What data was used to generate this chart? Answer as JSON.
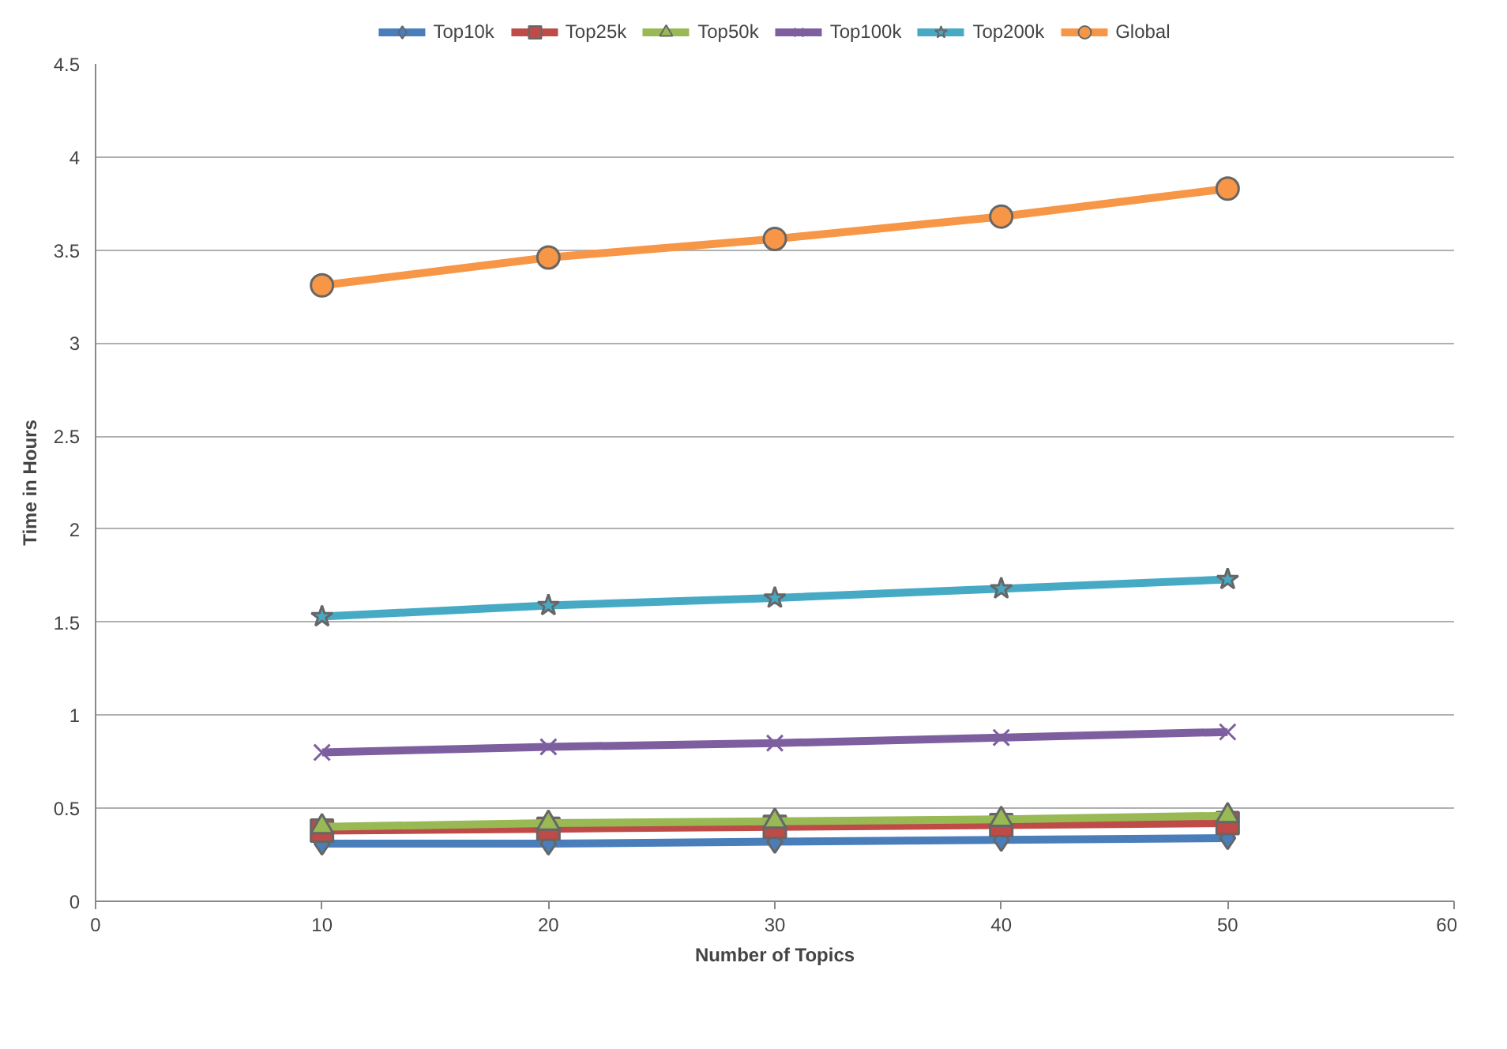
{
  "chart_data": {
    "type": "line",
    "xlabel": "Number of Topics",
    "ylabel": "Time in Hours",
    "x": [
      10,
      20,
      30,
      40,
      50
    ],
    "series": [
      {
        "name": "Top10k",
        "color": "#4a7ebb",
        "marker": "diamond",
        "values": [
          0.31,
          0.31,
          0.32,
          0.33,
          0.34
        ]
      },
      {
        "name": "Top25k",
        "color": "#be4b48",
        "marker": "square",
        "values": [
          0.38,
          0.39,
          0.4,
          0.41,
          0.42
        ]
      },
      {
        "name": "Top50k",
        "color": "#98b954",
        "marker": "triangle",
        "values": [
          0.4,
          0.42,
          0.43,
          0.44,
          0.46
        ]
      },
      {
        "name": "Top100k",
        "color": "#7d5fa0",
        "marker": "cross",
        "values": [
          0.8,
          0.83,
          0.85,
          0.88,
          0.91
        ]
      },
      {
        "name": "Top200k",
        "color": "#46aac5",
        "marker": "star",
        "values": [
          1.53,
          1.59,
          1.63,
          1.68,
          1.73
        ]
      },
      {
        "name": "Global",
        "color": "#f79646",
        "marker": "circle",
        "values": [
          3.31,
          3.46,
          3.56,
          3.68,
          3.83
        ]
      }
    ],
    "xlim": [
      0,
      60
    ],
    "xticks": [
      0,
      10,
      20,
      30,
      40,
      50,
      60
    ],
    "ylim": [
      0,
      4.5
    ],
    "yticks": [
      0,
      0.5,
      1,
      1.5,
      2,
      2.5,
      3,
      3.5,
      4,
      4.5
    ],
    "grid": "y",
    "legend": "top",
    "line_style": "solid"
  }
}
